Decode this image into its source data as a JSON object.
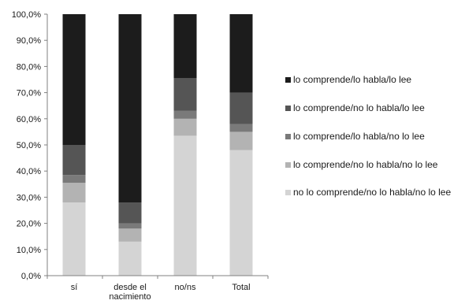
{
  "chart_data": {
    "type": "bar",
    "stacked": true,
    "categories": [
      {
        "label": [
          "sí"
        ]
      },
      {
        "label": [
          "desde el",
          "nacimiento"
        ]
      },
      {
        "label": [
          "no/ns"
        ]
      },
      {
        "label": [
          "Total"
        ]
      }
    ],
    "series": [
      {
        "name": "no lo comprende/no lo habla/no lo lee",
        "color": "#d4d4d4",
        "values": [
          28.0,
          13.0,
          53.5,
          48.0
        ]
      },
      {
        "name": "lo comprende/no lo habla/no lo lee",
        "color": "#b3b3b3",
        "values": [
          7.5,
          5.0,
          6.5,
          7.0
        ]
      },
      {
        "name": "lo comprende/lo habla/no lo lee",
        "color": "#7a7a7a",
        "values": [
          3.0,
          2.0,
          3.0,
          3.0
        ]
      },
      {
        "name": "lo comprende/no lo habla/lo lee",
        "color": "#555555",
        "values": [
          11.5,
          8.0,
          12.5,
          12.0
        ]
      },
      {
        "name": "lo comprende/lo habla/lo lee",
        "color": "#1c1c1c",
        "values": [
          50.0,
          72.0,
          24.5,
          30.0
        ]
      }
    ],
    "legend_order": [
      4,
      3,
      2,
      1,
      0
    ],
    "y_ticks": [
      "0,0%",
      "10,0%",
      "20,0%",
      "30,0%",
      "40,0%",
      "50,0%",
      "60,0%",
      "70,0%",
      "80,0%",
      "90,0%",
      "100,0%"
    ],
    "ylim": [
      0,
      100
    ],
    "grid": false,
    "legend_position": "right"
  }
}
